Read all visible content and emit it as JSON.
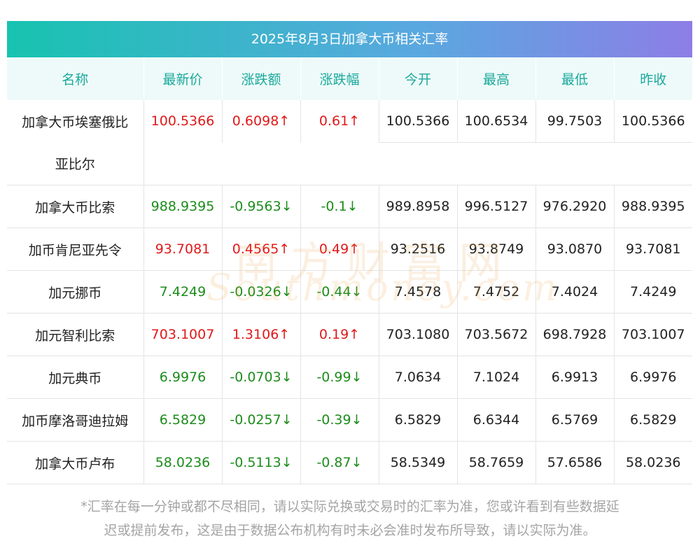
{
  "title": "2025年8月3日加拿大币相关汇率",
  "headers": [
    "名称",
    "最新价",
    "涨跌额",
    "涨跌幅",
    "今开",
    "最高",
    "最低",
    "昨收"
  ],
  "rows": [
    {
      "name": "加拿大币埃塞俄比亚比尔",
      "name_line1": "加拿大币埃塞俄比",
      "name_line2": "亚比尔",
      "latest": "100.5366",
      "change": "0.6098↑",
      "pct": "0.61↑",
      "open": "100.5366",
      "high": "100.6534",
      "low": "99.7503",
      "prev": "100.5366",
      "dir": "up"
    },
    {
      "name": "加拿大币比索",
      "latest": "988.9395",
      "change": "-0.9563↓",
      "pct": "-0.1↓",
      "open": "989.8958",
      "high": "996.5127",
      "low": "976.2920",
      "prev": "988.9395",
      "dir": "down"
    },
    {
      "name": "加币肯尼亚先令",
      "latest": "93.7081",
      "change": "0.4565↑",
      "pct": "0.49↑",
      "open": "93.2516",
      "high": "93.8749",
      "low": "93.0870",
      "prev": "93.7081",
      "dir": "up"
    },
    {
      "name": "加元挪币",
      "latest": "7.4249",
      "change": "-0.0326↓",
      "pct": "-0.44↓",
      "open": "7.4578",
      "high": "7.4752",
      "low": "7.4024",
      "prev": "7.4249",
      "dir": "down"
    },
    {
      "name": "加元智利比索",
      "latest": "703.1007",
      "change": "1.3106↑",
      "pct": "0.19↑",
      "open": "703.1080",
      "high": "703.5672",
      "low": "698.7928",
      "prev": "703.1007",
      "dir": "up"
    },
    {
      "name": "加元典币",
      "latest": "6.9976",
      "change": "-0.0703↓",
      "pct": "-0.99↓",
      "open": "7.0634",
      "high": "7.1024",
      "low": "6.9913",
      "prev": "6.9976",
      "dir": "down"
    },
    {
      "name": "加币摩洛哥迪拉姆",
      "latest": "6.5829",
      "change": "-0.0257↓",
      "pct": "-0.39↓",
      "open": "6.5829",
      "high": "6.6344",
      "low": "6.5769",
      "prev": "6.5829",
      "dir": "down"
    },
    {
      "name": "加拿大币卢布",
      "latest": "58.0236",
      "change": "-0.5113↓",
      "pct": "-0.87↓",
      "open": "58.5349",
      "high": "58.7659",
      "low": "57.6586",
      "prev": "58.0236",
      "dir": "down"
    }
  ],
  "watermark": {
    "cn": "南方财富网",
    "en": "Southmoney.com"
  },
  "footnote_line1": "*汇率在每一分钟或都不尽相同，请以实际兑换或交易时的汇率为准，您或许看到有些数据延",
  "footnote_line2": "迟或提前发布，这是由于数据公布机构有时未必会准时发布所导致，请以实际为准。",
  "colors": {
    "up": "#e0191a",
    "down": "#1c8c1c",
    "header_text": "#1aa99c",
    "header_bg": "#eefaf9",
    "title_grad_start": "#17c3b0",
    "title_grad_end": "#8d7ee6"
  }
}
